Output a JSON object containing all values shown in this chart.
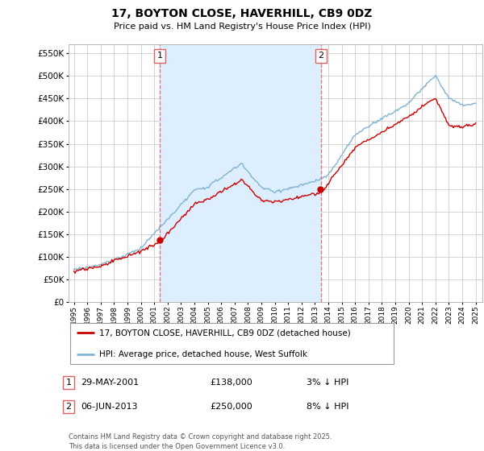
{
  "title": "17, BOYTON CLOSE, HAVERHILL, CB9 0DZ",
  "subtitle": "Price paid vs. HM Land Registry's House Price Index (HPI)",
  "legend_line1": "17, BOYTON CLOSE, HAVERHILL, CB9 0DZ (detached house)",
  "legend_line2": "HPI: Average price, detached house, West Suffolk",
  "transaction1_date": "29-MAY-2001",
  "transaction1_price": "£138,000",
  "transaction1_hpi": "3% ↓ HPI",
  "transaction1_year": 2001.42,
  "transaction1_value": 138000,
  "transaction2_date": "06-JUN-2013",
  "transaction2_price": "£250,000",
  "transaction2_hpi": "8% ↓ HPI",
  "transaction2_year": 2013.45,
  "transaction2_value": 250000,
  "price_color": "#cc0000",
  "hpi_color": "#7fb3d3",
  "shade_color": "#ddeeff",
  "dashed_line_color": "#e06060",
  "background_color": "#ffffff",
  "grid_color": "#cccccc",
  "footnote": "Contains HM Land Registry data © Crown copyright and database right 2025.\nThis data is licensed under the Open Government Licence v3.0.",
  "ylim": [
    0,
    570000
  ],
  "yticks": [
    0,
    50000,
    100000,
    150000,
    200000,
    250000,
    300000,
    350000,
    400000,
    450000,
    500000,
    550000
  ],
  "xmin": 1994.6,
  "xmax": 2025.5
}
